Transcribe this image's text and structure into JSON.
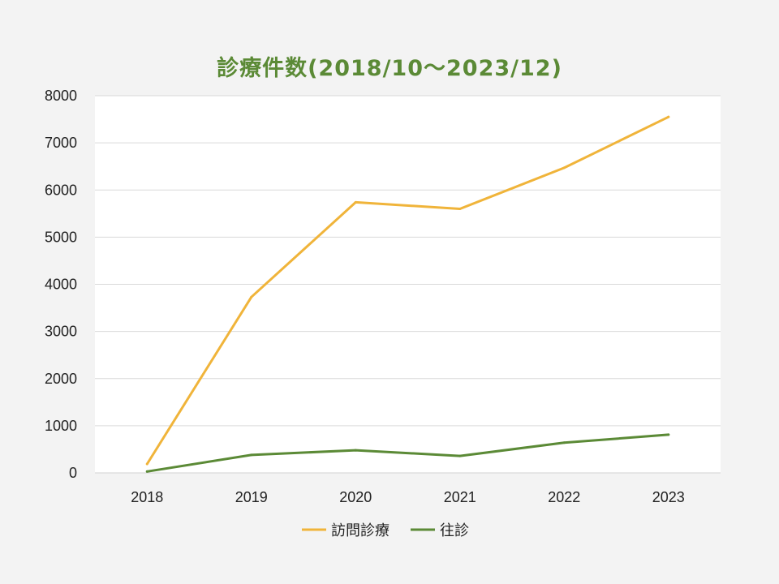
{
  "chart_data": {
    "type": "line",
    "title": "診療件数(2018/10～2023/12)",
    "xlabel": "",
    "ylabel": "",
    "categories": [
      "2018",
      "2019",
      "2020",
      "2021",
      "2022",
      "2023"
    ],
    "ylim": [
      0,
      8000
    ],
    "yticks": [
      0,
      1000,
      2000,
      3000,
      4000,
      5000,
      6000,
      7000,
      8000
    ],
    "grid": true,
    "legend_position": "bottom",
    "series": [
      {
        "name": "訪問診療",
        "color": "#f0b43a",
        "values": [
          190,
          3730,
          5740,
          5600,
          6470,
          7550
        ]
      },
      {
        "name": "往診",
        "color": "#5b8a36",
        "values": [
          30,
          380,
          480,
          360,
          640,
          810
        ]
      }
    ]
  }
}
